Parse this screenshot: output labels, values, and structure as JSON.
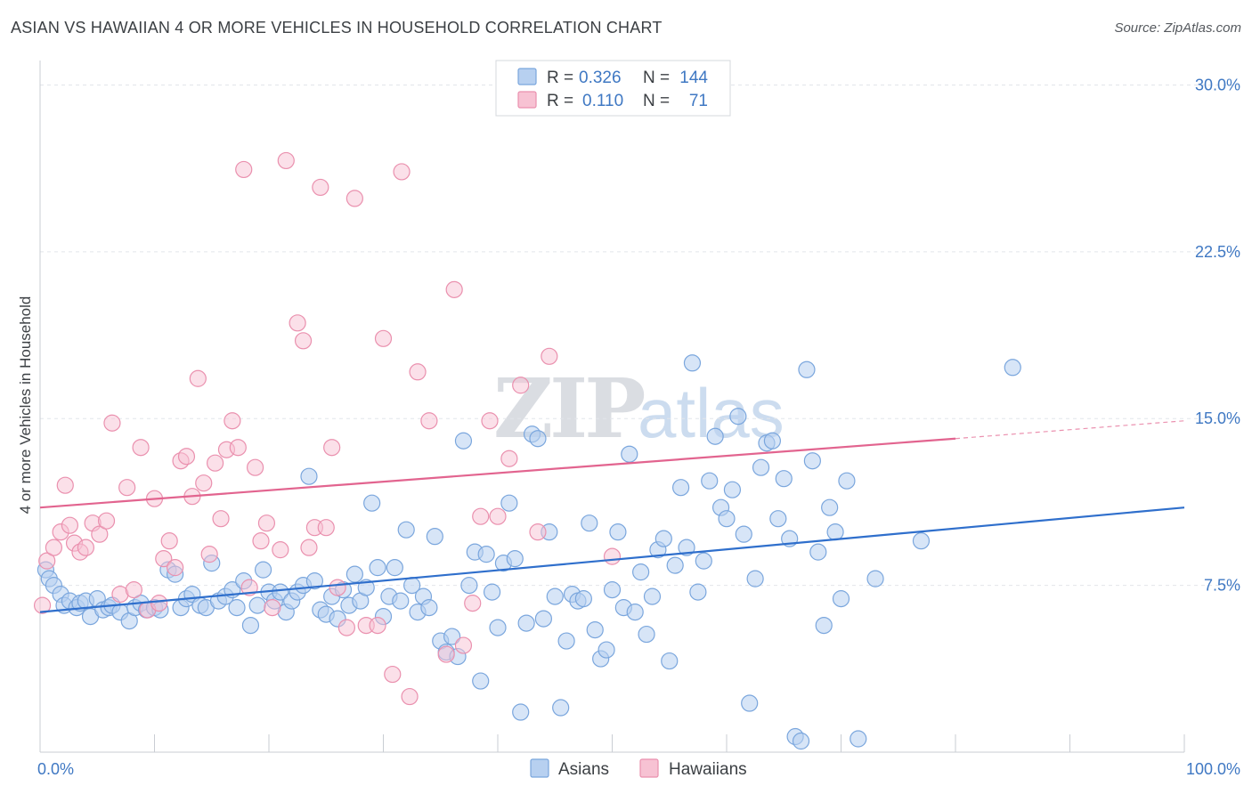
{
  "title": "ASIAN VS HAWAIIAN 4 OR MORE VEHICLES IN HOUSEHOLD CORRELATION CHART",
  "source": "Source: ZipAtlas.com",
  "watermark": {
    "zip": "ZIP",
    "atlas": "atlas"
  },
  "colors": {
    "asians_fill": "#b7d0f0",
    "asians_stroke": "#7aa6dd",
    "asians_line": "#2f6fcc",
    "hawaiians_fill": "#f7c2d3",
    "hawaiians_stroke": "#ea90ae",
    "hawaiians_line": "#e2648f",
    "grid": "#e2e5ea",
    "axis_text": "#3f78c3"
  },
  "legend": {
    "rows": [
      {
        "r_label": "R =",
        "r_value": "0.326",
        "n_label": "N =",
        "n_value": "144"
      },
      {
        "r_label": "R =",
        "r_value": "0.110",
        "n_label": "N =",
        "n_value": "71"
      }
    ]
  },
  "bottom_legend": [
    "Asians",
    "Hawaiians"
  ],
  "chart_data": {
    "type": "scatter",
    "ylabel": "4 or more Vehicles in Household",
    "xlim": [
      0,
      100
    ],
    "ylim": [
      0,
      30
    ],
    "x_tick_labels": [
      "0.0%",
      "100.0%"
    ],
    "y_ticks": [
      7.5,
      15.0,
      22.5,
      30.0
    ],
    "y_tick_labels": [
      "7.5%",
      "15.0%",
      "22.5%",
      "30.0%"
    ],
    "grid": "horizontal dashed",
    "legend_position": "top-center",
    "series": [
      {
        "name": "Asians",
        "R": 0.326,
        "N": 144,
        "trend": {
          "x": [
            0,
            100
          ],
          "y": [
            6.3,
            11.0
          ]
        },
        "points": [
          [
            0.5,
            8.2
          ],
          [
            0.8,
            7.8
          ],
          [
            1.2,
            7.5
          ],
          [
            1.8,
            7.1
          ],
          [
            2.1,
            6.6
          ],
          [
            2.6,
            6.8
          ],
          [
            3.2,
            6.5
          ],
          [
            3.5,
            6.7
          ],
          [
            4.0,
            6.8
          ],
          [
            4.4,
            6.1
          ],
          [
            5.0,
            6.9
          ],
          [
            5.5,
            6.4
          ],
          [
            6.0,
            6.5
          ],
          [
            6.3,
            6.6
          ],
          [
            7.0,
            6.3
          ],
          [
            7.8,
            5.9
          ],
          [
            8.3,
            6.5
          ],
          [
            8.8,
            6.7
          ],
          [
            9.3,
            6.4
          ],
          [
            10.0,
            6.5
          ],
          [
            10.5,
            6.4
          ],
          [
            11.2,
            8.2
          ],
          [
            11.8,
            8.0
          ],
          [
            12.3,
            6.5
          ],
          [
            12.8,
            6.9
          ],
          [
            13.3,
            7.1
          ],
          [
            14.0,
            6.6
          ],
          [
            14.5,
            6.5
          ],
          [
            15.0,
            8.5
          ],
          [
            15.6,
            6.8
          ],
          [
            16.2,
            7.0
          ],
          [
            16.8,
            7.3
          ],
          [
            17.2,
            6.5
          ],
          [
            17.8,
            7.7
          ],
          [
            18.4,
            5.7
          ],
          [
            19.0,
            6.6
          ],
          [
            19.5,
            8.2
          ],
          [
            20.0,
            7.2
          ],
          [
            20.5,
            6.8
          ],
          [
            21.0,
            7.2
          ],
          [
            21.5,
            6.3
          ],
          [
            22.0,
            6.8
          ],
          [
            22.5,
            7.2
          ],
          [
            23.0,
            7.5
          ],
          [
            23.5,
            12.4
          ],
          [
            24.0,
            7.7
          ],
          [
            24.5,
            6.4
          ],
          [
            25.0,
            6.2
          ],
          [
            25.5,
            7.0
          ],
          [
            26.0,
            6.0
          ],
          [
            26.5,
            7.3
          ],
          [
            27.0,
            6.6
          ],
          [
            27.5,
            8.0
          ],
          [
            28.0,
            6.8
          ],
          [
            28.5,
            7.4
          ],
          [
            29.0,
            11.2
          ],
          [
            29.5,
            8.3
          ],
          [
            30.0,
            6.1
          ],
          [
            30.5,
            7.0
          ],
          [
            31.0,
            8.3
          ],
          [
            31.5,
            6.8
          ],
          [
            32.0,
            10.0
          ],
          [
            32.5,
            7.5
          ],
          [
            33.0,
            6.3
          ],
          [
            33.5,
            7.0
          ],
          [
            34.0,
            6.5
          ],
          [
            34.5,
            9.7
          ],
          [
            35.0,
            5.0
          ],
          [
            35.5,
            4.5
          ],
          [
            36.0,
            5.2
          ],
          [
            36.5,
            4.3
          ],
          [
            37.0,
            14.0
          ],
          [
            37.5,
            7.5
          ],
          [
            38.0,
            9.0
          ],
          [
            38.5,
            3.2
          ],
          [
            39.0,
            8.9
          ],
          [
            39.5,
            7.2
          ],
          [
            40.0,
            5.6
          ],
          [
            40.5,
            8.5
          ],
          [
            41.0,
            11.2
          ],
          [
            41.5,
            8.7
          ],
          [
            42.0,
            1.8
          ],
          [
            42.5,
            5.8
          ],
          [
            43.0,
            14.3
          ],
          [
            43.5,
            14.1
          ],
          [
            44.0,
            6.0
          ],
          [
            44.5,
            9.9
          ],
          [
            45.0,
            7.0
          ],
          [
            45.5,
            2.0
          ],
          [
            46.0,
            5.0
          ],
          [
            46.5,
            7.1
          ],
          [
            47.0,
            6.8
          ],
          [
            47.5,
            6.9
          ],
          [
            48.0,
            10.3
          ],
          [
            48.5,
            5.5
          ],
          [
            49.0,
            4.2
          ],
          [
            49.5,
            4.6
          ],
          [
            50.0,
            7.3
          ],
          [
            50.5,
            9.9
          ],
          [
            51.0,
            6.5
          ],
          [
            51.5,
            13.4
          ],
          [
            52.0,
            6.3
          ],
          [
            52.5,
            8.1
          ],
          [
            53.0,
            5.3
          ],
          [
            53.5,
            7.0
          ],
          [
            54.0,
            9.1
          ],
          [
            54.5,
            9.6
          ],
          [
            55.0,
            4.1
          ],
          [
            55.5,
            8.4
          ],
          [
            56.0,
            11.9
          ],
          [
            56.5,
            9.2
          ],
          [
            57.0,
            17.5
          ],
          [
            57.5,
            7.2
          ],
          [
            58.0,
            8.6
          ],
          [
            58.5,
            12.2
          ],
          [
            59.0,
            14.2
          ],
          [
            59.5,
            11.0
          ],
          [
            60.0,
            10.5
          ],
          [
            60.5,
            11.8
          ],
          [
            61.0,
            15.1
          ],
          [
            61.5,
            9.8
          ],
          [
            62.0,
            2.2
          ],
          [
            62.5,
            7.8
          ],
          [
            63.0,
            12.8
          ],
          [
            63.5,
            13.9
          ],
          [
            64.0,
            14.0
          ],
          [
            64.5,
            10.5
          ],
          [
            65.0,
            12.3
          ],
          [
            65.5,
            9.6
          ],
          [
            66.0,
            0.7
          ],
          [
            66.5,
            0.5
          ],
          [
            67.0,
            17.2
          ],
          [
            67.5,
            13.1
          ],
          [
            68.0,
            9.0
          ],
          [
            68.5,
            5.7
          ],
          [
            69.0,
            11.0
          ],
          [
            69.5,
            9.9
          ],
          [
            70.0,
            6.9
          ],
          [
            70.5,
            12.2
          ],
          [
            71.5,
            0.6
          ],
          [
            73.0,
            7.8
          ],
          [
            77.0,
            9.5
          ],
          [
            85.0,
            17.3
          ]
        ]
      },
      {
        "name": "Hawaiians",
        "R": 0.11,
        "N": 71,
        "trend": {
          "x": [
            0,
            80
          ],
          "y": [
            11.0,
            14.1
          ]
        },
        "trend_dashed": {
          "x": [
            80,
            100
          ],
          "y": [
            14.1,
            14.9
          ]
        },
        "points": [
          [
            0.2,
            6.6
          ],
          [
            0.6,
            8.6
          ],
          [
            1.2,
            9.2
          ],
          [
            1.8,
            9.9
          ],
          [
            2.2,
            12.0
          ],
          [
            2.6,
            10.2
          ],
          [
            3.0,
            9.4
          ],
          [
            3.5,
            9.0
          ],
          [
            4.0,
            9.2
          ],
          [
            4.6,
            10.3
          ],
          [
            5.2,
            9.8
          ],
          [
            5.8,
            10.4
          ],
          [
            6.3,
            14.8
          ],
          [
            7.0,
            7.1
          ],
          [
            7.6,
            11.9
          ],
          [
            8.2,
            7.3
          ],
          [
            8.8,
            13.7
          ],
          [
            9.4,
            6.4
          ],
          [
            10.0,
            11.4
          ],
          [
            10.4,
            6.7
          ],
          [
            10.8,
            8.7
          ],
          [
            11.3,
            9.5
          ],
          [
            11.8,
            8.3
          ],
          [
            12.3,
            13.1
          ],
          [
            12.8,
            13.3
          ],
          [
            13.3,
            11.5
          ],
          [
            13.8,
            16.8
          ],
          [
            14.3,
            12.1
          ],
          [
            14.8,
            8.9
          ],
          [
            15.3,
            13.0
          ],
          [
            15.8,
            10.5
          ],
          [
            16.3,
            13.6
          ],
          [
            16.8,
            14.9
          ],
          [
            17.3,
            13.7
          ],
          [
            17.8,
            26.2
          ],
          [
            18.3,
            7.4
          ],
          [
            18.8,
            12.8
          ],
          [
            19.3,
            9.5
          ],
          [
            19.8,
            10.3
          ],
          [
            20.3,
            6.5
          ],
          [
            21.0,
            9.1
          ],
          [
            21.5,
            26.6
          ],
          [
            22.5,
            19.3
          ],
          [
            23.0,
            18.5
          ],
          [
            23.5,
            9.2
          ],
          [
            24.0,
            10.1
          ],
          [
            24.5,
            25.4
          ],
          [
            25.0,
            10.1
          ],
          [
            25.5,
            13.7
          ],
          [
            26.0,
            7.4
          ],
          [
            26.8,
            5.6
          ],
          [
            27.5,
            24.9
          ],
          [
            28.5,
            5.7
          ],
          [
            29.5,
            5.7
          ],
          [
            30.0,
            18.6
          ],
          [
            30.8,
            3.5
          ],
          [
            31.6,
            26.1
          ],
          [
            32.3,
            2.5
          ],
          [
            33.0,
            17.1
          ],
          [
            34.0,
            14.9
          ],
          [
            35.5,
            4.4
          ],
          [
            36.2,
            20.8
          ],
          [
            37.0,
            4.8
          ],
          [
            37.8,
            6.7
          ],
          [
            38.5,
            10.6
          ],
          [
            39.3,
            14.9
          ],
          [
            40.0,
            10.6
          ],
          [
            41.0,
            13.2
          ],
          [
            42.0,
            16.5
          ],
          [
            43.5,
            9.9
          ],
          [
            44.5,
            17.8
          ],
          [
            50.0,
            8.8
          ]
        ]
      }
    ]
  }
}
